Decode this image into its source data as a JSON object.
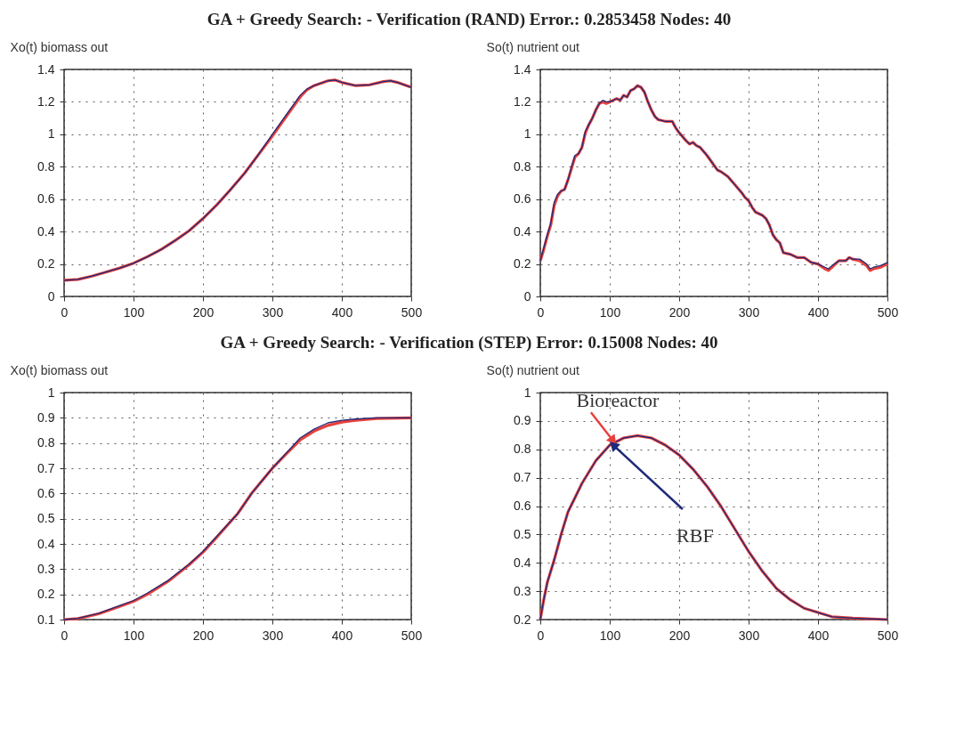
{
  "chart_data": [
    {
      "type": "other",
      "title": "GA + Greedy Search: - Verification (RAND) Error.: 0.2853458  Nodes: 40"
    },
    {
      "type": "line",
      "title": "Xo(t) biomass out",
      "xlim": [
        0,
        500
      ],
      "xticks": [
        0,
        100,
        200,
        300,
        400,
        500
      ],
      "ylim": [
        0,
        1.4
      ],
      "yticks": [
        0,
        0.2,
        0.4,
        0.6,
        0.8,
        1,
        1.2,
        1.4
      ],
      "grid": true,
      "line_style": "solid",
      "x": [
        0,
        20,
        40,
        60,
        80,
        100,
        120,
        140,
        160,
        180,
        200,
        220,
        240,
        260,
        280,
        300,
        320,
        340,
        350,
        360,
        380,
        390,
        400,
        420,
        440,
        460,
        470,
        480,
        500
      ],
      "series": [
        {
          "color": "#e8413c",
          "values": [
            0.1,
            0.105,
            0.125,
            0.15,
            0.175,
            0.205,
            0.245,
            0.29,
            0.345,
            0.405,
            0.48,
            0.565,
            0.66,
            0.76,
            0.875,
            0.99,
            1.11,
            1.23,
            1.275,
            1.3,
            1.33,
            1.335,
            1.32,
            1.3,
            1.305,
            1.325,
            1.33,
            1.32,
            1.29
          ]
        },
        {
          "color": "#1f2a7a",
          "values": [
            0.1,
            0.105,
            0.125,
            0.15,
            0.175,
            0.205,
            0.245,
            0.29,
            0.345,
            0.405,
            0.48,
            0.565,
            0.66,
            0.76,
            0.875,
            1.0,
            1.12,
            1.24,
            1.28,
            1.3,
            1.33,
            1.335,
            1.32,
            1.3,
            1.305,
            1.325,
            1.33,
            1.32,
            1.29
          ]
        }
      ]
    },
    {
      "type": "line",
      "title": "So(t) nutrient out",
      "xlim": [
        0,
        500
      ],
      "xticks": [
        0,
        100,
        200,
        300,
        400,
        500
      ],
      "ylim": [
        0,
        1.4
      ],
      "yticks": [
        0,
        0.2,
        0.4,
        0.6,
        0.8,
        1,
        1.2,
        1.4
      ],
      "grid": true,
      "line_style": "solid",
      "x": [
        0,
        5,
        10,
        15,
        20,
        25,
        30,
        35,
        40,
        45,
        50,
        55,
        60,
        65,
        70,
        75,
        80,
        85,
        90,
        95,
        100,
        105,
        110,
        115,
        120,
        125,
        130,
        135,
        140,
        145,
        150,
        155,
        160,
        165,
        170,
        180,
        190,
        195,
        200,
        210,
        215,
        220,
        225,
        230,
        240,
        250,
        255,
        260,
        270,
        280,
        290,
        295,
        300,
        305,
        310,
        320,
        325,
        330,
        335,
        340,
        345,
        350,
        360,
        370,
        380,
        390,
        400,
        410,
        415,
        420,
        430,
        440,
        445,
        450,
        460,
        470,
        475,
        480,
        490,
        495,
        500
      ],
      "series": [
        {
          "color": "#e8413c",
          "values": [
            0.22,
            0.29,
            0.37,
            0.44,
            0.56,
            0.62,
            0.65,
            0.66,
            0.72,
            0.79,
            0.86,
            0.88,
            0.92,
            1.01,
            1.06,
            1.1,
            1.15,
            1.19,
            1.2,
            1.19,
            1.2,
            1.21,
            1.22,
            1.21,
            1.24,
            1.23,
            1.27,
            1.28,
            1.3,
            1.29,
            1.26,
            1.2,
            1.15,
            1.11,
            1.09,
            1.08,
            1.08,
            1.04,
            1.01,
            0.96,
            0.94,
            0.95,
            0.93,
            0.92,
            0.87,
            0.81,
            0.78,
            0.77,
            0.74,
            0.69,
            0.64,
            0.61,
            0.59,
            0.55,
            0.52,
            0.5,
            0.48,
            0.44,
            0.38,
            0.35,
            0.33,
            0.27,
            0.26,
            0.24,
            0.24,
            0.21,
            0.2,
            0.17,
            0.16,
            0.18,
            0.22,
            0.22,
            0.24,
            0.23,
            0.22,
            0.19,
            0.16,
            0.17,
            0.18,
            0.19,
            0.2
          ]
        },
        {
          "color": "#1f2a7a",
          "values": [
            0.22,
            0.3,
            0.38,
            0.45,
            0.58,
            0.63,
            0.65,
            0.66,
            0.72,
            0.8,
            0.87,
            0.88,
            0.92,
            1.02,
            1.06,
            1.1,
            1.15,
            1.19,
            1.21,
            1.2,
            1.2,
            1.21,
            1.22,
            1.21,
            1.24,
            1.23,
            1.27,
            1.28,
            1.3,
            1.29,
            1.26,
            1.2,
            1.15,
            1.11,
            1.09,
            1.08,
            1.08,
            1.04,
            1.01,
            0.96,
            0.94,
            0.95,
            0.93,
            0.92,
            0.87,
            0.81,
            0.78,
            0.77,
            0.74,
            0.69,
            0.64,
            0.61,
            0.59,
            0.55,
            0.52,
            0.5,
            0.48,
            0.44,
            0.38,
            0.35,
            0.33,
            0.27,
            0.26,
            0.24,
            0.24,
            0.21,
            0.2,
            0.18,
            0.17,
            0.19,
            0.22,
            0.22,
            0.24,
            0.23,
            0.23,
            0.2,
            0.17,
            0.18,
            0.19,
            0.2,
            0.21
          ]
        }
      ]
    },
    {
      "type": "other",
      "title": "GA + Greedy Search: - Verification (STEP) Error: 0.15008 Nodes: 40"
    },
    {
      "type": "line",
      "title": "Xo(t) biomass out",
      "xlim": [
        0,
        500
      ],
      "xticks": [
        0,
        100,
        200,
        300,
        400,
        500
      ],
      "ylim": [
        0.1,
        1
      ],
      "yticks": [
        0.1,
        0.2,
        0.3,
        0.4,
        0.5,
        0.6,
        0.7,
        0.8,
        0.9,
        1
      ],
      "grid": true,
      "line_style": "solid",
      "x": [
        0,
        20,
        50,
        80,
        100,
        120,
        150,
        180,
        200,
        220,
        250,
        270,
        300,
        320,
        340,
        360,
        380,
        400,
        420,
        450,
        500
      ],
      "series": [
        {
          "color": "#e8413c",
          "values": [
            0.1,
            0.104,
            0.123,
            0.152,
            0.172,
            0.2,
            0.252,
            0.317,
            0.367,
            0.427,
            0.52,
            0.6,
            0.7,
            0.757,
            0.812,
            0.847,
            0.87,
            0.883,
            0.89,
            0.897,
            0.9
          ]
        },
        {
          "color": "#1f2a7a",
          "values": [
            0.1,
            0.105,
            0.125,
            0.155,
            0.175,
            0.205,
            0.255,
            0.32,
            0.37,
            0.43,
            0.52,
            0.6,
            0.7,
            0.76,
            0.82,
            0.855,
            0.88,
            0.89,
            0.895,
            0.9,
            0.9
          ]
        }
      ]
    },
    {
      "type": "line",
      "title": "So(t) nutrient out",
      "xlim": [
        0,
        500
      ],
      "xticks": [
        0,
        100,
        200,
        300,
        400,
        500
      ],
      "ylim": [
        0.2,
        1
      ],
      "yticks": [
        0.2,
        0.3,
        0.4,
        0.5,
        0.6,
        0.7,
        0.8,
        0.9,
        1
      ],
      "grid": true,
      "line_style": "solid",
      "x": [
        0,
        5,
        10,
        20,
        30,
        40,
        50,
        60,
        70,
        80,
        100,
        120,
        140,
        160,
        180,
        200,
        220,
        240,
        260,
        280,
        300,
        320,
        340,
        360,
        380,
        400,
        420,
        450,
        500
      ],
      "annotations": [
        {
          "text": "Bioreactor",
          "x": 105,
          "y": 0.83
        },
        {
          "text": "RBF",
          "x": 105,
          "y": 0.815
        }
      ],
      "series": [
        {
          "color": "#e8413c",
          "values": [
            0.2,
            0.27,
            0.33,
            0.41,
            0.5,
            0.58,
            0.63,
            0.68,
            0.72,
            0.76,
            0.815,
            0.84,
            0.848,
            0.84,
            0.815,
            0.78,
            0.73,
            0.67,
            0.6,
            0.52,
            0.44,
            0.37,
            0.31,
            0.27,
            0.24,
            0.225,
            0.21,
            0.205,
            0.2
          ]
        },
        {
          "color": "#1f2a7a",
          "values": [
            0.2,
            0.27,
            0.33,
            0.41,
            0.5,
            0.58,
            0.63,
            0.68,
            0.72,
            0.76,
            0.815,
            0.84,
            0.848,
            0.84,
            0.815,
            0.78,
            0.73,
            0.67,
            0.6,
            0.52,
            0.44,
            0.37,
            0.31,
            0.27,
            0.24,
            0.225,
            0.21,
            0.205,
            0.2
          ]
        }
      ]
    }
  ]
}
